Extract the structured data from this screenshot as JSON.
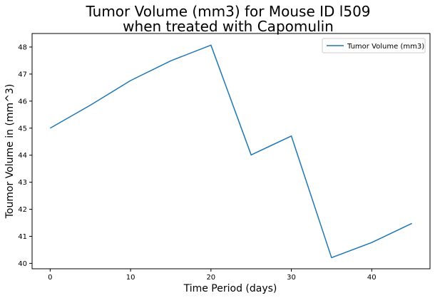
{
  "chart_data": {
    "type": "line",
    "title": [
      "Tumor Volume (mm3) for Mouse ID l509",
      "when treated with Capomulin"
    ],
    "xlabel": "Time Period (days)",
    "ylabel": "Toumor Volume in (mm^3)",
    "x": [
      0,
      5,
      10,
      15,
      20,
      25,
      30,
      35,
      40,
      45
    ],
    "series": [
      {
        "name": "Tumor Volume (mm3)",
        "color": "#1f77b4",
        "values": [
          45.0,
          45.85,
          46.76,
          47.49,
          48.07,
          44.01,
          44.71,
          40.21,
          40.77,
          41.48
        ]
      }
    ],
    "xlim": [
      -2.25,
      47.25
    ],
    "ylim": [
      39.8,
      48.5
    ],
    "xticks": [
      "0",
      "10",
      "20",
      "30",
      "40"
    ],
    "xtick_values": [
      0,
      10,
      20,
      30,
      40
    ],
    "yticks": [
      "40",
      "41",
      "42",
      "43",
      "44",
      "45",
      "46",
      "47",
      "48"
    ],
    "ytick_values": [
      40,
      41,
      42,
      43,
      44,
      45,
      46,
      47,
      48
    ],
    "grid": false,
    "legend_position": "top-right"
  }
}
